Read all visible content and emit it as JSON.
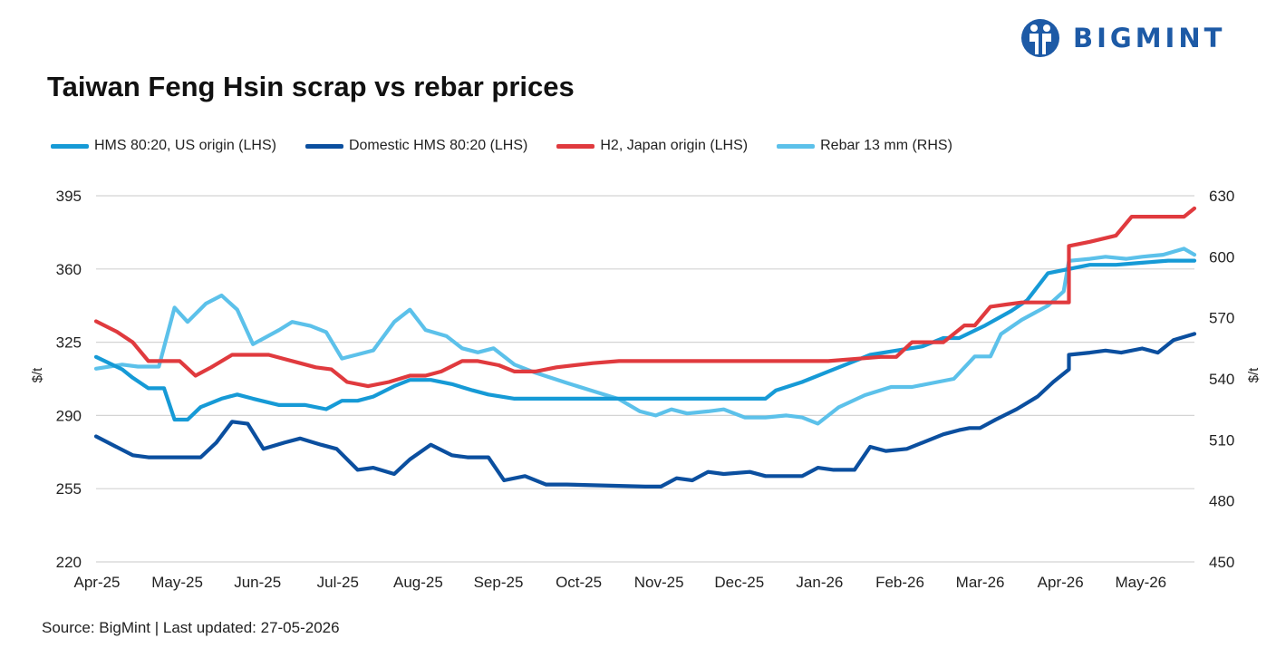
{
  "brand": {
    "name": "BIGMINT"
  },
  "title": "Taiwan Feng Hsin scrap vs rebar prices",
  "source": "Source: BigMint |  Last updated: 27-05-2026",
  "chart_data": {
    "type": "line",
    "title": "Taiwan Feng Hsin scrap vs rebar prices",
    "xlabel": "",
    "ylabel": "$/t",
    "ylabel_right": "$/t",
    "ylim": [
      220,
      395
    ],
    "ylim_right": [
      450,
      630
    ],
    "yticks": [
      220,
      255,
      290,
      325,
      360,
      395
    ],
    "yticks_right": [
      450,
      480,
      510,
      540,
      570,
      600,
      630
    ],
    "x_ticks": [
      "Apr-25",
      "May-25",
      "Jun-25",
      "Jul-25",
      "Aug-25",
      "Sep-25",
      "Oct-25",
      "Nov-25",
      "Dec-25",
      "Jan-26",
      "Feb-26",
      "Mar-26",
      "Apr-26",
      "May-26"
    ],
    "grid": true,
    "legend_position": "top",
    "series": [
      {
        "name": "HMS 80:20, US origin (LHS)",
        "axis": "left",
        "color": "#169ad6",
        "values": [
          [
            0,
            318
          ],
          [
            0.5,
            312
          ],
          [
            0.7,
            308
          ],
          [
            1,
            303
          ],
          [
            1.3,
            303
          ],
          [
            1.5,
            288
          ],
          [
            1.75,
            288
          ],
          [
            2,
            294
          ],
          [
            2.4,
            298
          ],
          [
            2.7,
            300
          ],
          [
            3,
            298
          ],
          [
            3.5,
            295
          ],
          [
            4,
            295
          ],
          [
            4.4,
            293
          ],
          [
            4.7,
            297
          ],
          [
            5,
            297
          ],
          [
            5.3,
            299
          ],
          [
            5.7,
            304
          ],
          [
            6,
            307
          ],
          [
            6.4,
            307
          ],
          [
            6.8,
            305
          ],
          [
            7.2,
            302
          ],
          [
            7.5,
            300
          ],
          [
            8,
            298
          ],
          [
            12,
            298
          ],
          [
            12.8,
            298
          ],
          [
            13,
            302
          ],
          [
            13.5,
            306
          ],
          [
            14,
            311
          ],
          [
            14.5,
            316
          ],
          [
            14.8,
            319
          ],
          [
            15.3,
            321
          ],
          [
            15.8,
            323
          ],
          [
            16.2,
            327
          ],
          [
            16.5,
            327
          ],
          [
            17,
            333
          ],
          [
            17.5,
            340
          ],
          [
            17.8,
            345
          ],
          [
            18.2,
            358
          ],
          [
            18.6,
            360
          ],
          [
            19,
            362
          ],
          [
            19.5,
            362
          ],
          [
            20,
            363
          ],
          [
            20.5,
            364
          ],
          [
            21,
            364
          ]
        ]
      },
      {
        "name": "Domestic HMS 80:20 (LHS)",
        "axis": "left",
        "color": "#0b4f9f",
        "values": [
          [
            0,
            280
          ],
          [
            0.7,
            271
          ],
          [
            1,
            270
          ],
          [
            1.5,
            270
          ],
          [
            1.7,
            270
          ],
          [
            2,
            270
          ],
          [
            2.3,
            277
          ],
          [
            2.6,
            287
          ],
          [
            2.9,
            286
          ],
          [
            3.2,
            274
          ],
          [
            3.6,
            277
          ],
          [
            3.9,
            279
          ],
          [
            4.3,
            276
          ],
          [
            4.6,
            274
          ],
          [
            5,
            264
          ],
          [
            5.3,
            265
          ],
          [
            5.7,
            262
          ],
          [
            6,
            269
          ],
          [
            6.4,
            276
          ],
          [
            6.8,
            271
          ],
          [
            7.1,
            270
          ],
          [
            7.5,
            270
          ],
          [
            7.8,
            259
          ],
          [
            8.2,
            261
          ],
          [
            8.6,
            257
          ],
          [
            9,
            257
          ],
          [
            10.5,
            256
          ],
          [
            10.8,
            256
          ],
          [
            11.1,
            260
          ],
          [
            11.4,
            259
          ],
          [
            11.7,
            263
          ],
          [
            12,
            262
          ],
          [
            12.5,
            263
          ],
          [
            12.8,
            261
          ],
          [
            13,
            261
          ],
          [
            13.5,
            261
          ],
          [
            13.8,
            265
          ],
          [
            14.1,
            264
          ],
          [
            14.5,
            264
          ],
          [
            14.8,
            275
          ],
          [
            15.1,
            273
          ],
          [
            15.5,
            274
          ],
          [
            15.8,
            277
          ],
          [
            16.2,
            281
          ],
          [
            16.5,
            283
          ],
          [
            16.7,
            284
          ],
          [
            16.9,
            284
          ],
          [
            17.2,
            288
          ],
          [
            17.6,
            293
          ],
          [
            18,
            299
          ],
          [
            18.3,
            306
          ],
          [
            18.6,
            312
          ],
          [
            18.6,
            319
          ],
          [
            19,
            320
          ],
          [
            19.3,
            321
          ],
          [
            19.6,
            320
          ],
          [
            20,
            322
          ],
          [
            20.3,
            320
          ],
          [
            20.6,
            326
          ],
          [
            21,
            329
          ]
        ]
      },
      {
        "name": "H2, Japan origin (LHS)",
        "axis": "left",
        "color": "#e03a3e",
        "values": [
          [
            0,
            335
          ],
          [
            0.4,
            330
          ],
          [
            0.7,
            325
          ],
          [
            1,
            316
          ],
          [
            1.3,
            316
          ],
          [
            1.6,
            316
          ],
          [
            1.9,
            309
          ],
          [
            2.2,
            313
          ],
          [
            2.6,
            319
          ],
          [
            3.3,
            319
          ],
          [
            3.6,
            317
          ],
          [
            3.9,
            315
          ],
          [
            4.2,
            313
          ],
          [
            4.5,
            312
          ],
          [
            4.8,
            306
          ],
          [
            5.2,
            304
          ],
          [
            5.6,
            306
          ],
          [
            6,
            309
          ],
          [
            6.3,
            309
          ],
          [
            6.6,
            311
          ],
          [
            7,
            316
          ],
          [
            7.3,
            316
          ],
          [
            7.7,
            314
          ],
          [
            8,
            311
          ],
          [
            8.4,
            311
          ],
          [
            8.8,
            313
          ],
          [
            9.5,
            315
          ],
          [
            10,
            316
          ],
          [
            11,
            316
          ],
          [
            12,
            316
          ],
          [
            13,
            316
          ],
          [
            14,
            316
          ],
          [
            15,
            318
          ],
          [
            15.3,
            318
          ],
          [
            15.6,
            325
          ],
          [
            16.2,
            325
          ],
          [
            16.6,
            333
          ],
          [
            16.8,
            333
          ],
          [
            17.1,
            342
          ],
          [
            17.4,
            343
          ],
          [
            17.7,
            344
          ],
          [
            18,
            344
          ],
          [
            18.6,
            344
          ],
          [
            18.6,
            371
          ],
          [
            19,
            373
          ],
          [
            19.5,
            376
          ],
          [
            19.8,
            385
          ],
          [
            20.3,
            385
          ],
          [
            20.8,
            385
          ],
          [
            21,
            389
          ]
        ]
      },
      {
        "name": "Rebar 13 mm (RHS)",
        "axis": "right",
        "color": "#5cc1ea",
        "values": [
          [
            0,
            545
          ],
          [
            0.5,
            547
          ],
          [
            0.8,
            546
          ],
          [
            1.2,
            546
          ],
          [
            1.5,
            575
          ],
          [
            1.75,
            568
          ],
          [
            2.1,
            577
          ],
          [
            2.4,
            581
          ],
          [
            2.7,
            574
          ],
          [
            3,
            557
          ],
          [
            3.5,
            564
          ],
          [
            3.75,
            568
          ],
          [
            4.1,
            566
          ],
          [
            4.4,
            563
          ],
          [
            4.7,
            550
          ],
          [
            5,
            552
          ],
          [
            5.3,
            554
          ],
          [
            5.7,
            568
          ],
          [
            6,
            574
          ],
          [
            6.3,
            564
          ],
          [
            6.7,
            561
          ],
          [
            7,
            555
          ],
          [
            7.3,
            553
          ],
          [
            7.6,
            555
          ],
          [
            8,
            547
          ],
          [
            8.4,
            543
          ],
          [
            9,
            538
          ],
          [
            9.5,
            534
          ],
          [
            10,
            530
          ],
          [
            10.4,
            524
          ],
          [
            10.7,
            522
          ],
          [
            11,
            525
          ],
          [
            11.3,
            523
          ],
          [
            11.7,
            524
          ],
          [
            12,
            525
          ],
          [
            12.4,
            521
          ],
          [
            12.8,
            521
          ],
          [
            13.2,
            522
          ],
          [
            13.5,
            521
          ],
          [
            13.8,
            518
          ],
          [
            14.2,
            526
          ],
          [
            14.7,
            532
          ],
          [
            15.2,
            536
          ],
          [
            15.6,
            536
          ],
          [
            16,
            538
          ],
          [
            16.4,
            540
          ],
          [
            16.8,
            551
          ],
          [
            17.1,
            551
          ],
          [
            17.3,
            562
          ],
          [
            17.7,
            569
          ],
          [
            18.2,
            576
          ],
          [
            18.5,
            583
          ],
          [
            18.6,
            598
          ],
          [
            19,
            599
          ],
          [
            19.3,
            600
          ],
          [
            19.7,
            599
          ],
          [
            20,
            600
          ],
          [
            20.4,
            601
          ],
          [
            20.8,
            604
          ],
          [
            21,
            601
          ]
        ]
      }
    ]
  }
}
